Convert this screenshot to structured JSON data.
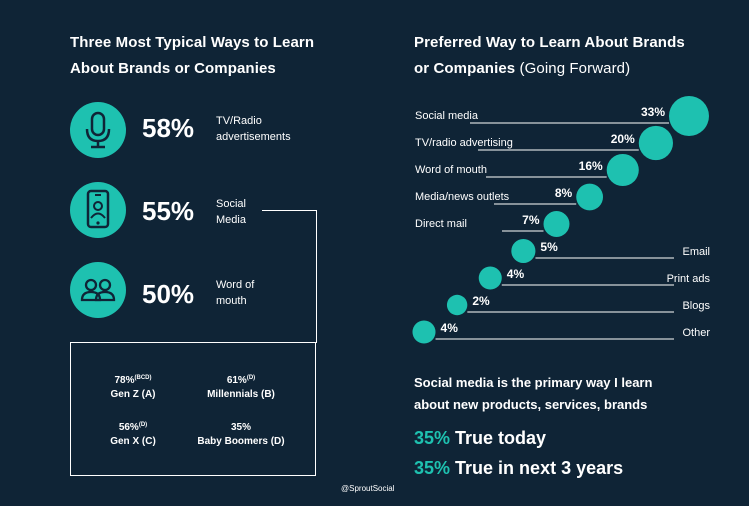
{
  "left": {
    "title_line1": "Three Most Typical Ways to Learn",
    "title_line2": "About Brands or Companies",
    "stats": [
      {
        "pct": "58%",
        "label": "TV/Radio advertisements",
        "icon": "microphone-icon"
      },
      {
        "pct": "55%",
        "label": "Social Media",
        "icon": "smartphone-icon"
      },
      {
        "pct": "50%",
        "label": "Word of mouth",
        "icon": "people-icon"
      }
    ],
    "generations": [
      {
        "value": "78%",
        "note": "(BCD)",
        "label": "Gen Z (A)"
      },
      {
        "value": "61%",
        "note": "(D)",
        "label": "Millennials (B)"
      },
      {
        "value": "56%",
        "note": "(D)",
        "label": "Gen X (C)"
      },
      {
        "value": "35%",
        "note": "",
        "label": "Baby Boomers (D)"
      }
    ]
  },
  "right": {
    "title_line1": "Preferred Way to Learn About Brands",
    "title_line2_bold": "or Companies",
    "title_line2_light": "(Going Forward)",
    "claim_line1": "Social media is the primary way I learn",
    "claim_line2": "about new products, services, brands",
    "today_pct": "35%",
    "today_text": "True today",
    "future_pct": "35%",
    "future_text": "True in next 3 years"
  },
  "credit": "@SproutSocial",
  "colors": {
    "background": "#0f2436",
    "accent": "#1ec1b0",
    "text": "#ffffff"
  },
  "chart_data": {
    "type": "bubble",
    "title": "Preferred Way to Learn About Brands or Companies (Going Forward)",
    "categories": [
      "Social media",
      "TV/radio advertising",
      "Word of mouth",
      "Media/news outlets",
      "Direct mail",
      "Email",
      "Print ads",
      "Blogs",
      "Other"
    ],
    "values": [
      33,
      20,
      16,
      8,
      7,
      5,
      4,
      2,
      4
    ],
    "value_labels": [
      "33%",
      "20%",
      "16%",
      "8%",
      "7%",
      "5%",
      "4%",
      "2%",
      "4%"
    ],
    "label_side": [
      "left",
      "left",
      "left",
      "left",
      "left",
      "right",
      "right",
      "right",
      "right"
    ]
  }
}
